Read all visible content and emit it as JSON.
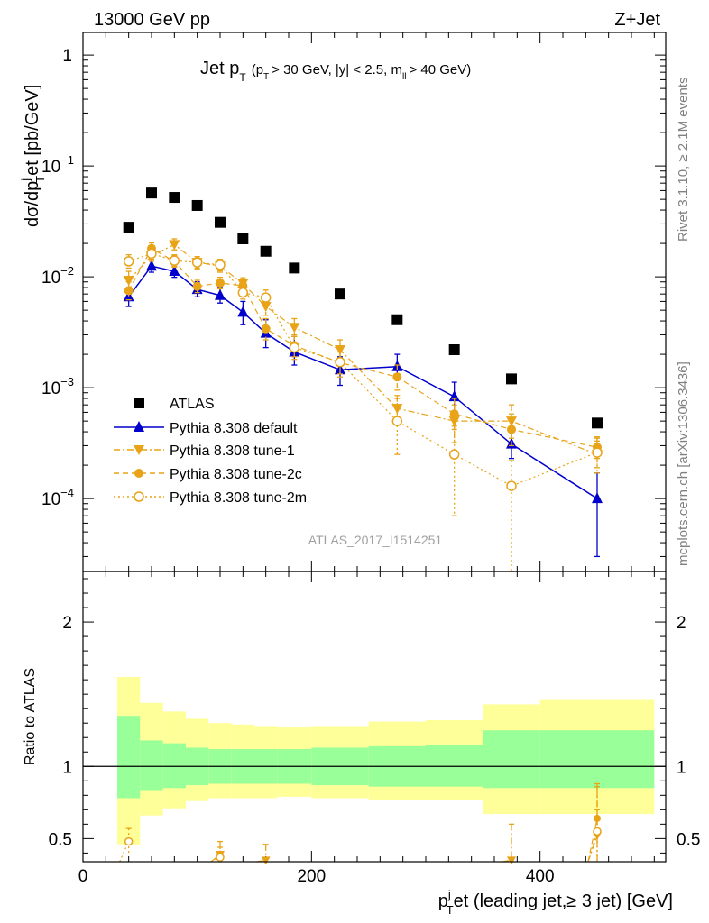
{
  "header": {
    "energy_label": "13000 GeV pp",
    "process_label": "Z+Jet",
    "title_main": "Jet p",
    "title_sub": "T",
    "title_cut_a": "(p",
    "title_cut_b": "T",
    "title_cut_c": "> 30 GeV, |y| < 2.5, m",
    "title_cut_d": "ll",
    "title_cut_e": "> 40 GeV)"
  },
  "side_labels": {
    "rivet": "Rivet 3.1.10, ≥ 2.1M events",
    "mcplots": "mcplots.cern.ch [arXiv:1306.3436]"
  },
  "analysis_id": "ATLAS_2017_I1514251",
  "colors": {
    "atlas": "#000000",
    "default": "#0000cc",
    "tune": "#e8a317",
    "band_inner": "#99ff99",
    "band_outer": "#ffff99"
  },
  "chart_data": [
    {
      "type": "scatter",
      "panel": "main",
      "ylabel": "dσ/dp_T^j et [pb/GeV]",
      "ylabel_parts": [
        "dσ/dp",
        "j",
        "T",
        "et [pb/GeV]"
      ],
      "yscale": "log",
      "ylim": [
        2.2e-05,
        1.6
      ],
      "xlim": [
        0,
        510
      ],
      "y_ticks": [
        {
          "v": 1,
          "base": "1",
          "exp": ""
        },
        {
          "v": 0.1,
          "base": "10",
          "exp": "−1"
        },
        {
          "v": 0.01,
          "base": "10",
          "exp": "−2"
        },
        {
          "v": 0.001,
          "base": "10",
          "exp": "−3"
        },
        {
          "v": 0.0001,
          "base": "10",
          "exp": "−4"
        }
      ],
      "bin_edges": [
        30,
        50,
        70,
        90,
        110,
        130,
        150,
        170,
        200,
        250,
        300,
        350,
        400,
        500
      ],
      "x": [
        40,
        60,
        80,
        100,
        120,
        140,
        160,
        185,
        225,
        275,
        325,
        375,
        450
      ],
      "series": [
        {
          "name": "ATLAS",
          "marker": "square",
          "values": [
            0.028,
            0.057,
            0.052,
            0.044,
            0.031,
            0.022,
            0.017,
            0.012,
            0.007,
            0.0041,
            0.0022,
            0.0012,
            0.00048
          ]
        },
        {
          "name": "Pythia 8.308 default",
          "marker": "triangle-up",
          "line": "solid",
          "values": [
            0.0066,
            0.0125,
            0.0112,
            0.0077,
            0.0068,
            0.0048,
            0.0031,
            0.0021,
            0.00145,
            0.00155,
            0.00083,
            0.00031,
            0.0001
          ],
          "err_up": [
            0.008,
            0.0142,
            0.0128,
            0.009,
            0.008,
            0.006,
            0.0041,
            0.0029,
            0.0019,
            0.002,
            0.00112,
            0.00042,
            0.00017
          ],
          "err_down": [
            0.0054,
            0.011,
            0.0099,
            0.0066,
            0.0058,
            0.0037,
            0.0023,
            0.0016,
            0.00105,
            0.0012,
            0.00056,
            0.00023,
            3e-05
          ]
        },
        {
          "name": "Pythia 8.308 tune-1",
          "marker": "triangle-down",
          "line": "dashdot",
          "values": [
            0.0093,
            0.0155,
            0.0195,
            0.0135,
            0.0125,
            0.0087,
            0.0054,
            0.0035,
            0.0022,
            0.00065,
            0.0005,
            0.0005,
            0.00025
          ],
          "err_up": [
            0.0112,
            0.0175,
            0.022,
            0.0152,
            0.014,
            0.0098,
            0.0064,
            0.0042,
            0.0027,
            0.00085,
            0.0007,
            0.0007,
            0.00033
          ],
          "err_down": [
            0.0078,
            0.0138,
            0.0175,
            0.0118,
            0.011,
            0.0076,
            0.0045,
            0.0029,
            0.0018,
            0.0005,
            0.00032,
            0.00035,
            0.00019
          ]
        },
        {
          "name": "Pythia 8.308 tune-2c",
          "marker": "circle",
          "line": "dashed",
          "values": [
            0.0075,
            0.018,
            0.0138,
            0.0082,
            0.0088,
            0.0083,
            0.0034,
            0.0024,
            0.00168,
            0.00125,
            0.00058,
            0.00042,
            0.00029
          ],
          "err_up": [
            0.009,
            0.0202,
            0.0155,
            0.0093,
            0.0099,
            0.0094,
            0.0042,
            0.003,
            0.0021,
            0.0016,
            0.0008,
            0.00058,
            0.00036
          ],
          "err_down": [
            0.0062,
            0.016,
            0.0122,
            0.0072,
            0.0078,
            0.0073,
            0.0027,
            0.0019,
            0.00133,
            0.00095,
            0.00042,
            0.0003,
            0.00023
          ]
        },
        {
          "name": "Pythia 8.308 tune-2m",
          "marker": "circle-open",
          "line": "dotted",
          "values": [
            0.0138,
            0.0162,
            0.014,
            0.0135,
            0.0128,
            0.0072,
            0.0065,
            0.0023,
            0.0017,
            0.0005,
            0.00025,
            0.00013,
            0.00026
          ],
          "err_up": [
            0.0158,
            0.0182,
            0.0158,
            0.0152,
            0.0144,
            0.0082,
            0.0076,
            0.0029,
            0.0022,
            0.0008,
            0.00045,
            0.00022,
            0.00035
          ],
          "err_down": [
            0.012,
            0.0144,
            0.0124,
            0.012,
            0.0113,
            0.0063,
            0.0055,
            0.0018,
            0.00125,
            0.00025,
            7e-05,
            1.5e-05,
            0.00017
          ]
        }
      ]
    },
    {
      "type": "scatter",
      "panel": "ratio",
      "ylabel": "Ratio to ATLAS",
      "ylim": [
        0.34,
        2.35
      ],
      "y_ticks": [
        {
          "v": 0.5,
          "label": "0.5"
        },
        {
          "v": 1,
          "label": "1"
        },
        {
          "v": 2,
          "label": "2"
        }
      ],
      "xlabel": "p_T^j et (leading jet,≥ 3 jet) [GeV]",
      "xlabel_parts": [
        "p",
        "j",
        "T",
        "et (leading jet,≥ 3 jet) [GeV]"
      ],
      "x_ticks": [
        {
          "v": 0,
          "label": "0"
        },
        {
          "v": 200,
          "label": "200"
        },
        {
          "v": 400,
          "label": "400"
        }
      ],
      "band_inner": {
        "lo": [
          0.78,
          0.83,
          0.85,
          0.87,
          0.88,
          0.88,
          0.88,
          0.88,
          0.87,
          0.86,
          0.86,
          0.85,
          0.85
        ],
        "hi": [
          1.35,
          1.18,
          1.16,
          1.13,
          1.12,
          1.12,
          1.12,
          1.12,
          1.13,
          1.14,
          1.15,
          1.25,
          1.25
        ]
      },
      "band_outer": {
        "lo": [
          0.46,
          0.66,
          0.71,
          0.76,
          0.78,
          0.78,
          0.78,
          0.79,
          0.78,
          0.77,
          0.77,
          0.67,
          0.67
        ],
        "hi": [
          1.62,
          1.44,
          1.38,
          1.33,
          1.3,
          1.29,
          1.28,
          1.27,
          1.28,
          1.31,
          1.32,
          1.43,
          1.46
        ]
      },
      "series": [
        {
          "name": "Pythia 8.308 tune-1",
          "x": [
            120,
            160,
            375,
            450
          ],
          "values": [
            0.39,
            0.35,
            0.35,
            0.52
          ],
          "err_up": [
            0.48,
            0.46,
            0.6,
            0.86
          ],
          "err_down": [
            0.34,
            0.34,
            0.34,
            0.34
          ]
        },
        {
          "name": "Pythia 8.308 tune-2c",
          "x": [
            450
          ],
          "values": [
            0.64
          ],
          "err_up": [
            0.88
          ],
          "err_down": [
            0.46
          ]
        },
        {
          "name": "Pythia 8.308 tune-2m",
          "x": [
            40,
            120,
            450
          ],
          "values": [
            0.48,
            0.37,
            0.55
          ],
          "err_up": [
            0.57,
            0.44,
            0.7
          ],
          "err_down": [
            0.39,
            0.34,
            0.34
          ]
        }
      ]
    }
  ]
}
